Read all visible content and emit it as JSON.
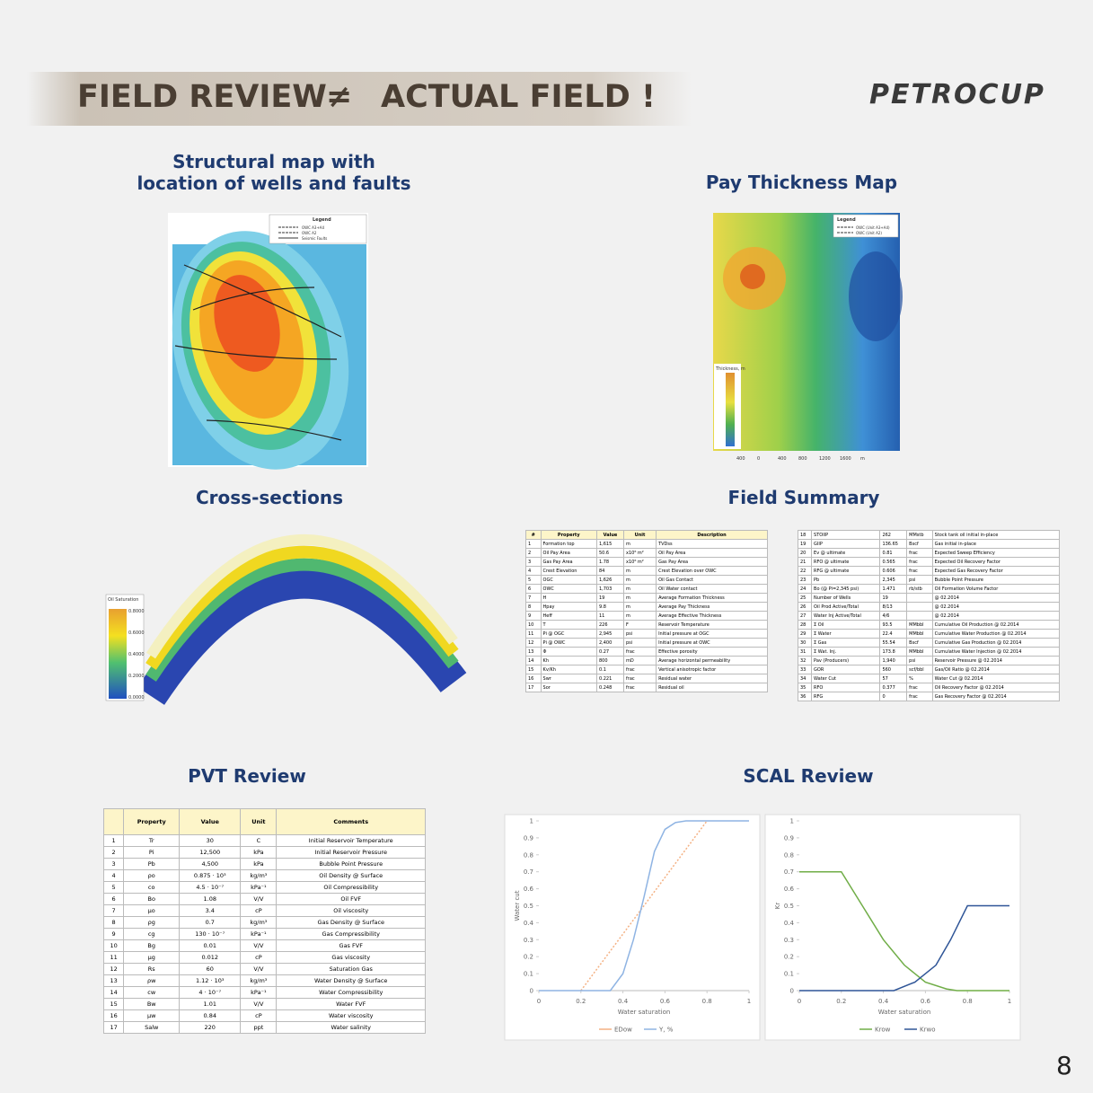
{
  "header": {
    "title_left": "FIELD REVIEW",
    "symbol": "≠",
    "title_right": "ACTUAL FIELD !",
    "logo": "PETROCUP"
  },
  "page_number": "8",
  "structural_map": {
    "title": [
      "Structural map with",
      "location of wells and faults"
    ],
    "legend_title": "Legend",
    "legend_items": [
      "OWC A3+A4",
      "OWC A2",
      "Seismic Faults"
    ]
  },
  "pay_thickness": {
    "title": "Pay Thickness Map",
    "legend_title": "Legend",
    "legend_items": [
      "OWC (Unit A3+A4)",
      "OWC (Unit A2)"
    ],
    "colorbar_title": "Thickness, m",
    "scale_labels": [
      "400",
      "0",
      "400",
      "800",
      "1200",
      "1600",
      "m"
    ]
  },
  "cross_sections": {
    "title": "Cross-sections",
    "colorbar_title": "Oil Saturation",
    "colorbar_labels": [
      "0.8000",
      "0.6000",
      "0.4000",
      "0.2000",
      "0.0000"
    ]
  },
  "field_summary": {
    "title": "Field Summary",
    "columns": [
      "#",
      "Property",
      "Value",
      "Unit",
      "Description"
    ],
    "left_rows": [
      [
        "1",
        "Formation top",
        "1,615",
        "m",
        "TVDss"
      ],
      [
        "2",
        "Oil Pay Area",
        "50.6",
        "x10⁶ m²",
        "Oil Pay Area"
      ],
      [
        "3",
        "Gas Pay Area",
        "1.78",
        "x10⁶ m²",
        "Gas Pay Area"
      ],
      [
        "4",
        "Crest Elevation",
        "84",
        "m",
        "Crest Elevation over OWC"
      ],
      [
        "5",
        "OGC",
        "1,626",
        "m",
        "Oil Gas Contact"
      ],
      [
        "6",
        "OWC",
        "1,703",
        "m",
        "Oil Water contact"
      ],
      [
        "7",
        "H",
        "19",
        "m",
        "Average Formation Thickness"
      ],
      [
        "8",
        "Hpay",
        "9.8",
        "m",
        "Average Pay Thickness"
      ],
      [
        "9",
        "Heff",
        "11",
        "m",
        "Average Effective Thickness"
      ],
      [
        "10",
        "T",
        "226",
        "F",
        "Reservoir Temperature"
      ],
      [
        "11",
        "Pi @ OGC",
        "2,945",
        "psi",
        "Initial pressure at OGC"
      ],
      [
        "12",
        "Pi @ OWC",
        "2,400",
        "psi",
        "Initial pressure at OWC"
      ],
      [
        "13",
        "Φ",
        "0.27",
        "frac",
        "Effective porosity"
      ],
      [
        "14",
        "Kh",
        "800",
        "mD",
        "Average horizontal permeability"
      ],
      [
        "15",
        "Kv/Kh",
        "0.1",
        "frac",
        "Vertical anisotropic factor"
      ],
      [
        "16",
        "Swr",
        "0.221",
        "frac",
        "Residual water"
      ],
      [
        "17",
        "Sor",
        "0.248",
        "frac",
        "Residual oil"
      ]
    ],
    "right_rows": [
      [
        "18",
        "STOIIP",
        "262",
        "MMstb",
        "Stock tank oil initial in-place"
      ],
      [
        "19",
        "GIIP",
        "136.65",
        "Bscf",
        "Gas initial in-place"
      ],
      [
        "20",
        "Ev @ ultimate",
        "0.81",
        "frac",
        "Expected Sweep Efficiency"
      ],
      [
        "21",
        "RFO @ ultimate",
        "0.565",
        "frac",
        "Expected Oil Recovery Factor"
      ],
      [
        "22",
        "RFG @ ultimate",
        "0.606",
        "frac",
        "Expected Gas Recovery Factor"
      ],
      [
        "23",
        "Pb",
        "2,345",
        "psi",
        "Bubble Point Pressure"
      ],
      [
        "24",
        "Bo (@ Pi=2,345 psi)",
        "1.471",
        "rb/stb",
        "Oil Formation Volume Factor"
      ],
      [
        "25",
        "Number of Wells",
        "19",
        null,
        "@ 02.2014"
      ],
      [
        "26",
        "Oil Prod Active/Total",
        "8/13",
        null,
        "@ 02.2014"
      ],
      [
        "27",
        "Water Inj Active/Total",
        "4/6",
        null,
        "@ 02.2014"
      ],
      [
        "28",
        "Σ Oil",
        "93.5",
        "MMbbl",
        "Cumulative Oil Production @ 02.2014"
      ],
      [
        "29",
        "Σ Water",
        "22.4",
        "MMbbl",
        "Cumulative Water Production @ 02.2014"
      ],
      [
        "30",
        "Σ Gas",
        "55.54",
        "Bscf",
        "Cumulative Gas Production @ 02.2014"
      ],
      [
        "31",
        "Σ Wat. Inj.",
        "173.8",
        "MMbbl",
        "Cumulative Water Injection @ 02.2014"
      ],
      [
        "32",
        "Pav (Producers)",
        "1,940",
        "psi",
        "Reservoir Pressure @ 02.2014"
      ],
      [
        "33",
        "GOR",
        "560",
        "scf/bbl",
        "Gas/Oil Ratio @ 02.2014"
      ],
      [
        "34",
        "Water Cut",
        "57",
        "%",
        "Water Cut @ 02.2014"
      ],
      [
        "35",
        "RFO",
        "0.377",
        "frac",
        "Oil Recovery Factor @ 02.2014"
      ],
      [
        "36",
        "RFG",
        "0",
        "frac",
        "Gas Recovery Factor @ 02.2014"
      ]
    ]
  },
  "pvt": {
    "title": "PVT Review",
    "columns": [
      "Property",
      "Value",
      "Unit",
      "Comments"
    ],
    "rows": [
      [
        "1",
        "Tr",
        "30",
        "C",
        "Initial Reservoir Temperature"
      ],
      [
        "2",
        "Pi",
        "12,500",
        "kPa",
        "Initial Reservoir Pressure"
      ],
      [
        "3",
        "Pb",
        "4,500",
        "kPa",
        "Bubble Point Pressure"
      ],
      [
        "4",
        "ρo",
        "0.875 · 10³",
        "kg/m³",
        "Oil Density @ Surface"
      ],
      [
        "5",
        "co",
        "4.5 · 10⁻⁷",
        "kPa⁻¹",
        "Oil Compressibility"
      ],
      [
        "6",
        "Bo",
        "1.08",
        "V/V",
        "Oil FVF"
      ],
      [
        "7",
        "μo",
        "3.4",
        "cP",
        "Oil viscosity"
      ],
      [
        "8",
        "ρg",
        "0.7",
        "kg/m³",
        "Gas Density @ Surface"
      ],
      [
        "9",
        "cg",
        "130 · 10⁻⁷",
        "kPa⁻¹",
        "Gas Compressibility"
      ],
      [
        "10",
        "Bg",
        "0.01",
        "V/V",
        "Gas FVF"
      ],
      [
        "11",
        "μg",
        "0.012",
        "cP",
        "Gas viscosity"
      ],
      [
        "12",
        "Rs",
        "60",
        "V/V",
        "Saturation Gas"
      ],
      [
        "13",
        "ρw",
        "1.12 · 10³",
        "kg/m³",
        "Water Density @ Surface"
      ],
      [
        "14",
        "cw",
        "4 · 10⁻⁷",
        "kPa⁻¹",
        "Water Compressibility"
      ],
      [
        "15",
        "Bw",
        "1.01",
        "V/V",
        "Water FVF"
      ],
      [
        "16",
        "μw",
        "0.84",
        "cP",
        "Water viscosity"
      ],
      [
        "17",
        "Salw",
        "220",
        "ppt",
        "Water salinity"
      ]
    ]
  },
  "scal": {
    "title": "SCAL Review",
    "chart_data": [
      {
        "type": "line",
        "x_label": "Water saturation",
        "y_label": "Water cut",
        "xlim": [
          0,
          1
        ],
        "xticks": [
          0,
          0.2,
          0.4,
          0.6,
          0.8,
          1
        ],
        "ylim": [
          0,
          1
        ],
        "yticks": [
          0,
          0.1,
          0.2,
          0.3,
          0.4,
          0.5,
          0.6,
          0.7,
          0.8,
          0.9,
          1
        ],
        "grid": false,
        "series": [
          {
            "name": "EDow",
            "color": "#f4b183",
            "dash": true,
            "x": [
              0.2,
              0.8
            ],
            "values": [
              0,
              1
            ]
          },
          {
            "name": "Y, %",
            "color": "#8fb4e3",
            "dash": false,
            "x": [
              0,
              0.2,
              0.34,
              0.4,
              0.45,
              0.5,
              0.55,
              0.6,
              0.65,
              0.7,
              1
            ],
            "values": [
              0,
              0,
              0,
              0.1,
              0.3,
              0.55,
              0.82,
              0.95,
              0.99,
              1,
              1
            ]
          }
        ]
      },
      {
        "type": "line",
        "x_label": "Water saturation",
        "y_label": "Kr",
        "xlim": [
          0,
          1
        ],
        "xticks": [
          0,
          0.2,
          0.4,
          0.6,
          0.8,
          1
        ],
        "ylim": [
          0,
          1
        ],
        "yticks": [
          0,
          0.1,
          0.2,
          0.3,
          0.4,
          0.5,
          0.6,
          0.7,
          0.8,
          0.9,
          1
        ],
        "grid": false,
        "series": [
          {
            "name": "Krow",
            "color": "#70ad47",
            "dash": false,
            "x": [
              0,
              0.2,
              0.3,
              0.4,
              0.5,
              0.6,
              0.7,
              0.75,
              1
            ],
            "values": [
              0.7,
              0.7,
              0.5,
              0.3,
              0.15,
              0.05,
              0.01,
              0,
              0
            ]
          },
          {
            "name": "Krwo",
            "color": "#2f5597",
            "dash": false,
            "x": [
              0,
              0.45,
              0.55,
              0.65,
              0.72,
              0.8,
              1
            ],
            "values": [
              0,
              0,
              0.05,
              0.15,
              0.3,
              0.5,
              0.5
            ]
          }
        ]
      }
    ]
  }
}
